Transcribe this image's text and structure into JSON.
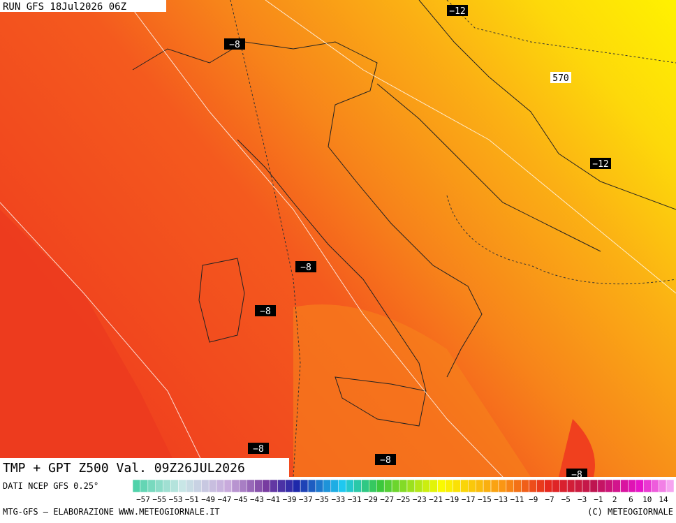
{
  "header": {
    "run": "RUN GFS 18Jul2026 06Z"
  },
  "title": "TMP + GPT Z500 Val. 09Z26JUL2026",
  "source": "DATI NCEP GFS 0.25°",
  "contour_labels": [
    "−12",
    "−8",
    "570",
    "−12",
    "−8",
    "−8",
    "−8",
    "−8",
    "−8"
  ],
  "scale_labels": [
    "−57",
    "−55",
    "−53",
    "−51",
    "−49",
    "−47",
    "−45",
    "−43",
    "−41",
    "−39",
    "−37",
    "−35",
    "−33",
    "−31",
    "−29",
    "−27",
    "−25",
    "−23",
    "−21",
    "−19",
    "−17",
    "−15",
    "−13",
    "−11",
    "−9",
    "−7",
    "−5",
    "−3",
    "−1",
    "2",
    "6",
    "10",
    "14"
  ],
  "footer": {
    "left": "MTG-GFS — ELABORAZIONE WWW.METEOGIORNALE.IT",
    "right": "(C) METEOGIORNALE"
  }
}
